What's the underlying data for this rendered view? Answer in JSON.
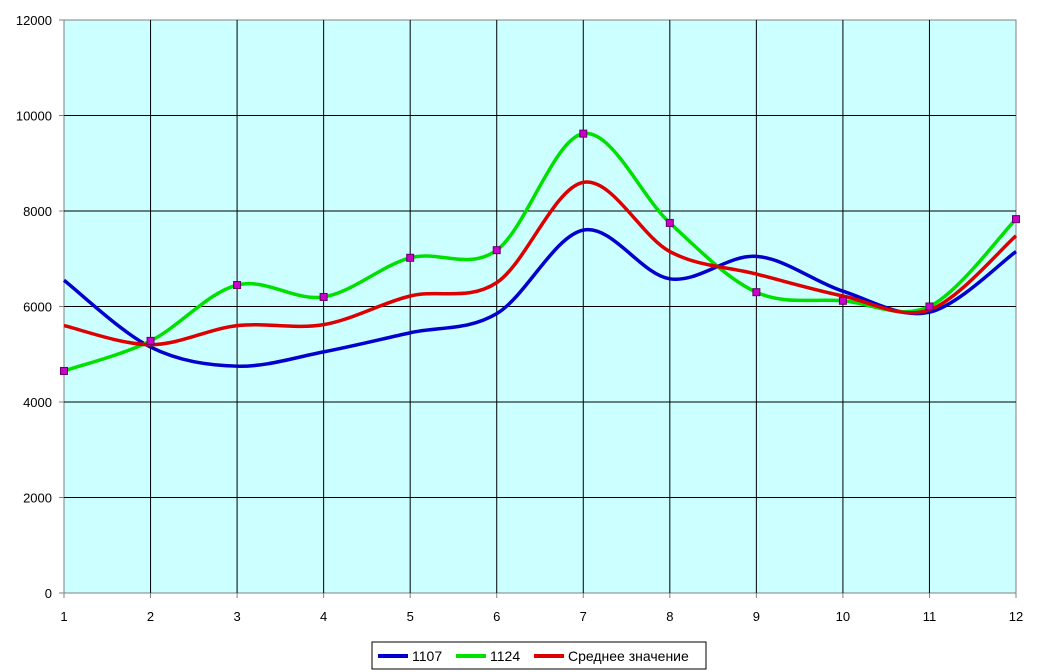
{
  "chart_data": {
    "type": "line",
    "x": [
      1,
      2,
      3,
      4,
      5,
      6,
      7,
      8,
      9,
      10,
      11,
      12
    ],
    "xticks": [
      "1",
      "2",
      "3",
      "4",
      "5",
      "6",
      "7",
      "8",
      "9",
      "10",
      "11",
      "12"
    ],
    "yticks": [
      "0",
      "2000",
      "4000",
      "6000",
      "8000",
      "10000",
      "12000"
    ],
    "ylim": [
      0,
      12000
    ],
    "grid": true,
    "plot_background": "#ccffff",
    "legend_position": "bottom-center",
    "markers": {
      "series": "1124",
      "color": "#cc00cc"
    },
    "series": [
      {
        "name": "1107",
        "color": "#0000cc",
        "values": [
          6550,
          5150,
          4750,
          5050,
          5450,
          5850,
          7600,
          6580,
          7050,
          6320,
          5880,
          7150
        ]
      },
      {
        "name": "1124",
        "color": "#00e000",
        "values": [
          4650,
          5280,
          6450,
          6200,
          7020,
          7180,
          9620,
          7750,
          6300,
          6120,
          6000,
          7830
        ]
      },
      {
        "name": "Среднее значение",
        "color": "#dd0000",
        "values": [
          5600,
          5200,
          5600,
          5620,
          6220,
          6500,
          8600,
          7150,
          6680,
          6220,
          5930,
          7480
        ]
      }
    ]
  }
}
